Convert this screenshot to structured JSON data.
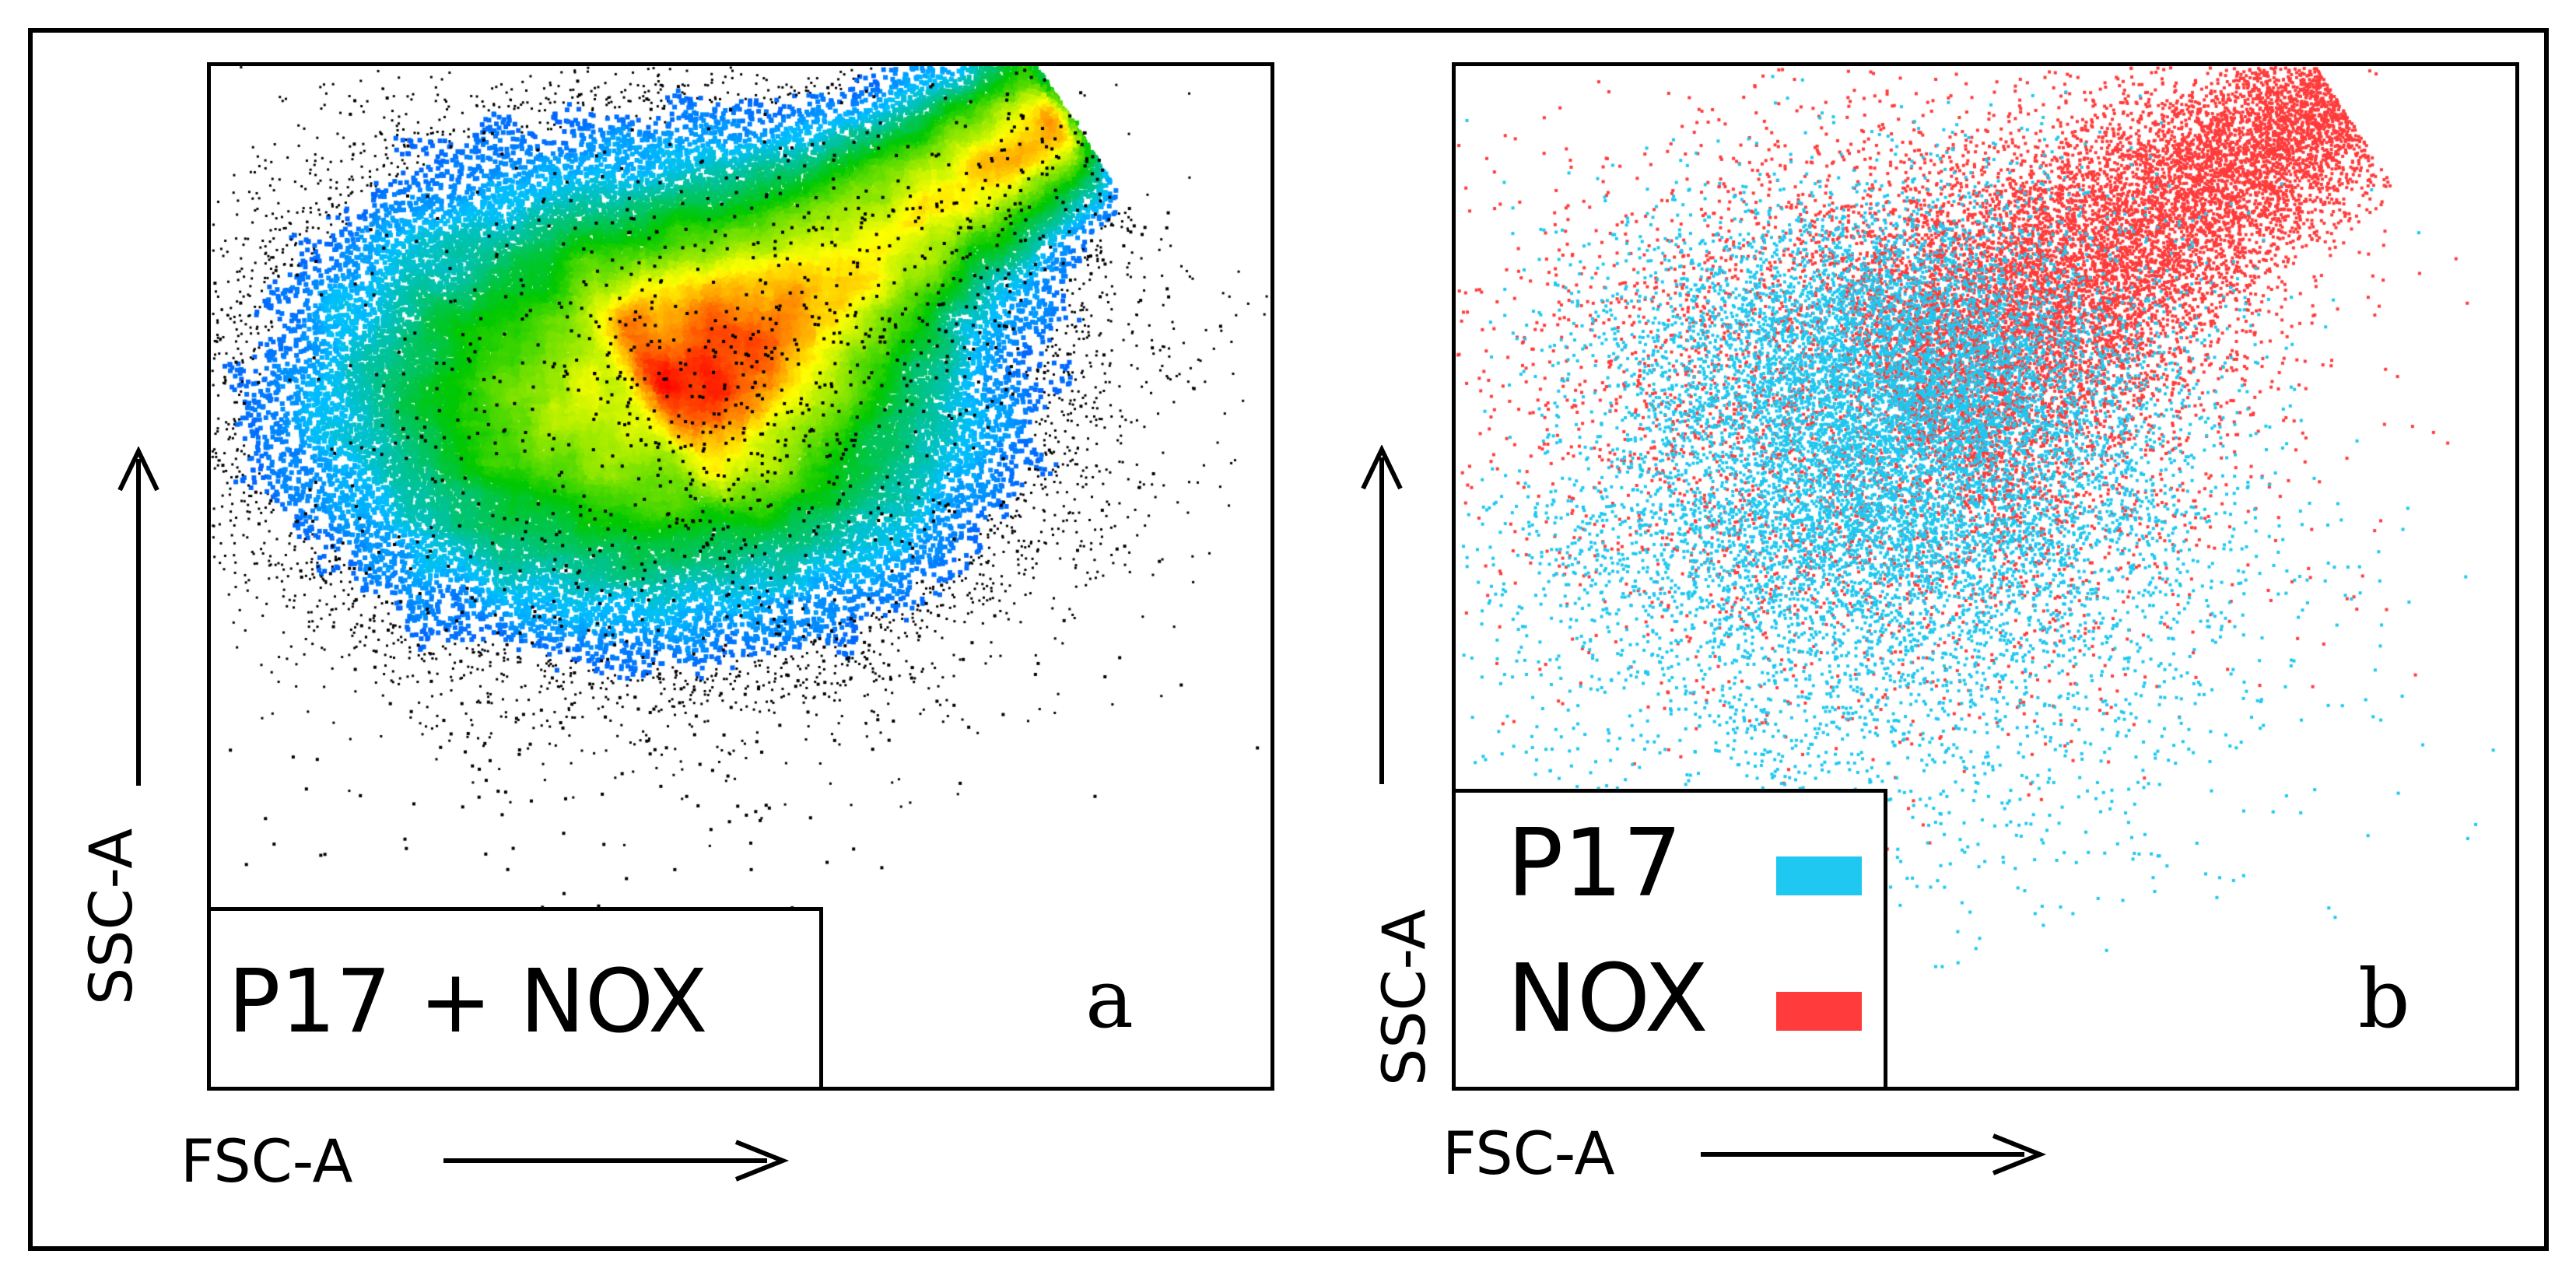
{
  "chart_data": [
    {
      "panel": "a",
      "type": "scatter",
      "style": "density",
      "title": "",
      "xlabel": "FSC-A",
      "ylabel": "SSC-A",
      "label": "P17 + NOX",
      "panel_letter": "a",
      "colormap": [
        "#0000ff",
        "#00bfff",
        "#00c800",
        "#ffff00",
        "#ff0000"
      ],
      "outlier_color": "#000000"
    },
    {
      "panel": "b",
      "type": "scatter",
      "title": "",
      "xlabel": "FSC-A",
      "ylabel": "SSC-A",
      "panel_letter": "b",
      "series": [
        {
          "name": "P17",
          "color": "#1ec8f0"
        },
        {
          "name": "NOX",
          "color": "#ff3b3b"
        }
      ]
    }
  ]
}
